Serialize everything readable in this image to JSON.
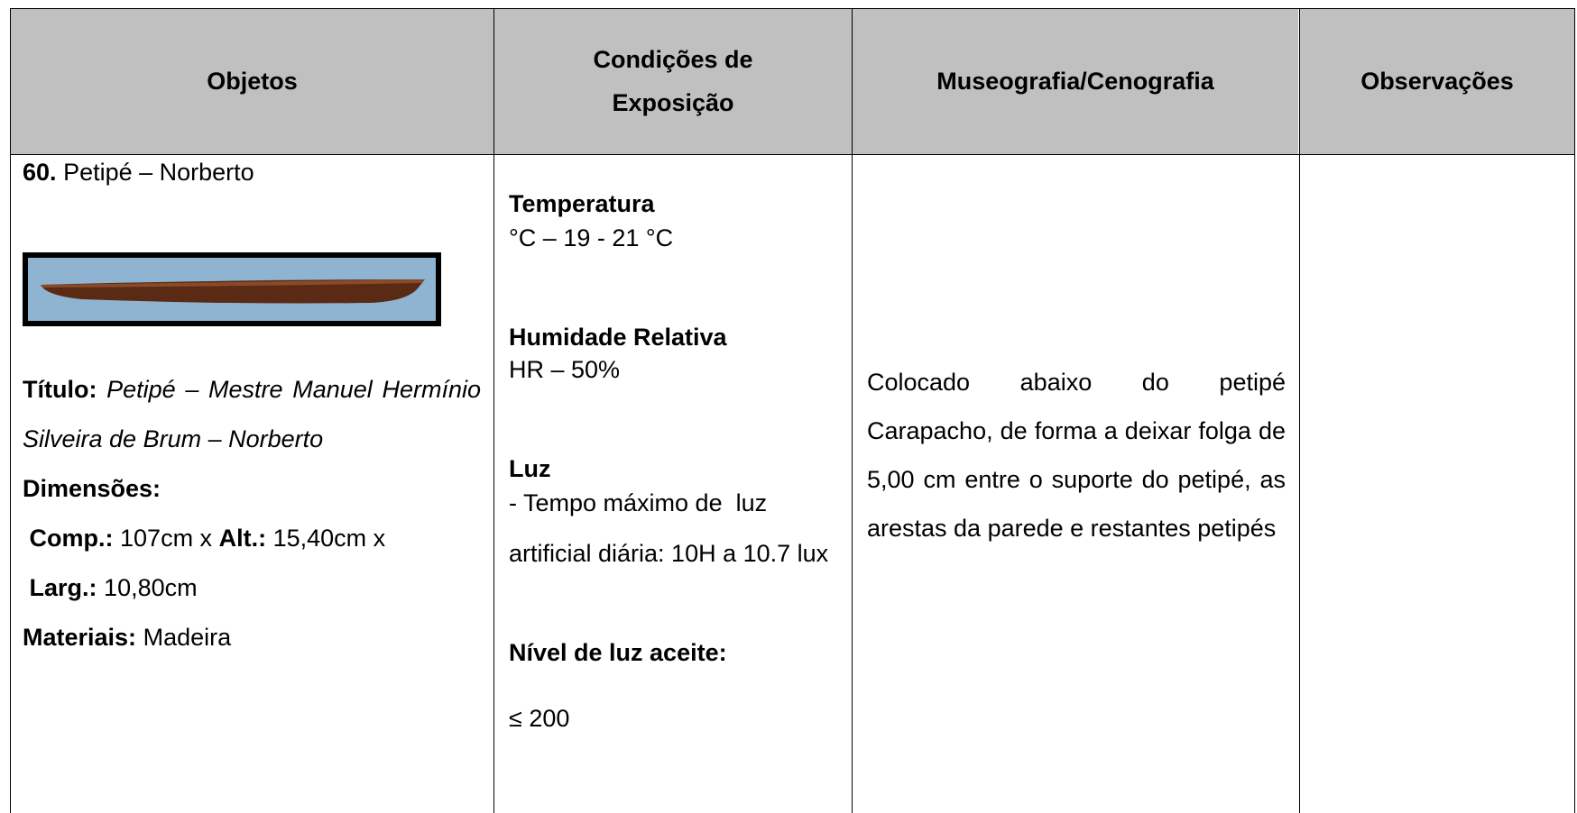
{
  "table": {
    "header": [
      "Objetos",
      "Condições de Exposição",
      "Museografia/Cenografia",
      "Observações"
    ],
    "row": {
      "objetos": {
        "number": "60.",
        "name": "Petipé – Norberto",
        "titulo_label": "Título:",
        "titulo": "Petipé – Mestre Manuel Hermínio Silveira de Brum – Norberto",
        "dimensoes_label": "Dimensões:",
        "comp_label": "Comp.:",
        "comp": "107cm x",
        "alt_label": "Alt.:",
        "alt": "15,40cm x",
        "larg_label": "Larg.:",
        "larg": "10,80cm",
        "materiais_label": "Materiais:",
        "materiais": "Madeira"
      },
      "condicoes": {
        "temperatura_label": "Temperatura",
        "temperatura": "°C – 19 - 21 °C",
        "humidade_label": "Humidade Relativa",
        "humidade": "HR – 50%",
        "luz_label": "Luz",
        "luz": "- Tempo máximo de  luz artificial diária: 10H a 10.7 lux",
        "nivel_label": "Nível de luz aceite:",
        "nivel": "≤ 200"
      },
      "museografia": "Colocado abaixo do petipé Carapacho, de forma a deixar folga de 5,00 cm entre o suporte do petipé, as arestas da parede e restantes petipés"
    }
  }
}
